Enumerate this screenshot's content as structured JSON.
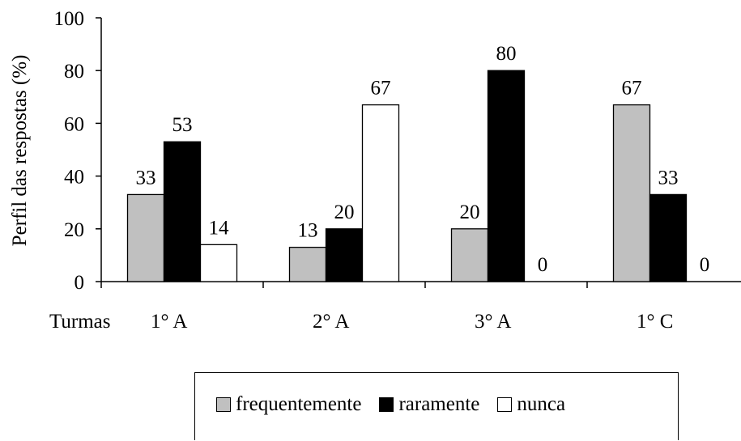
{
  "chart_data": {
    "type": "bar",
    "ylabel": "Perfil das respostas (%)",
    "xlabel": "Turmas",
    "ylim": [
      0,
      100
    ],
    "yticks": [
      0,
      20,
      40,
      60,
      80,
      100
    ],
    "categories": [
      "1° A",
      "2° A",
      "3° A",
      "1° C"
    ],
    "series": [
      {
        "name": "frequentemente",
        "color": "#c0c0c0",
        "values": [
          33,
          13,
          20,
          67
        ]
      },
      {
        "name": "raramente",
        "color": "#000000",
        "values": [
          53,
          20,
          80,
          33
        ]
      },
      {
        "name": "nunca",
        "color": "#ffffff",
        "values": [
          14,
          67,
          0,
          0
        ]
      }
    ],
    "grid": false,
    "legend": "bottom"
  }
}
